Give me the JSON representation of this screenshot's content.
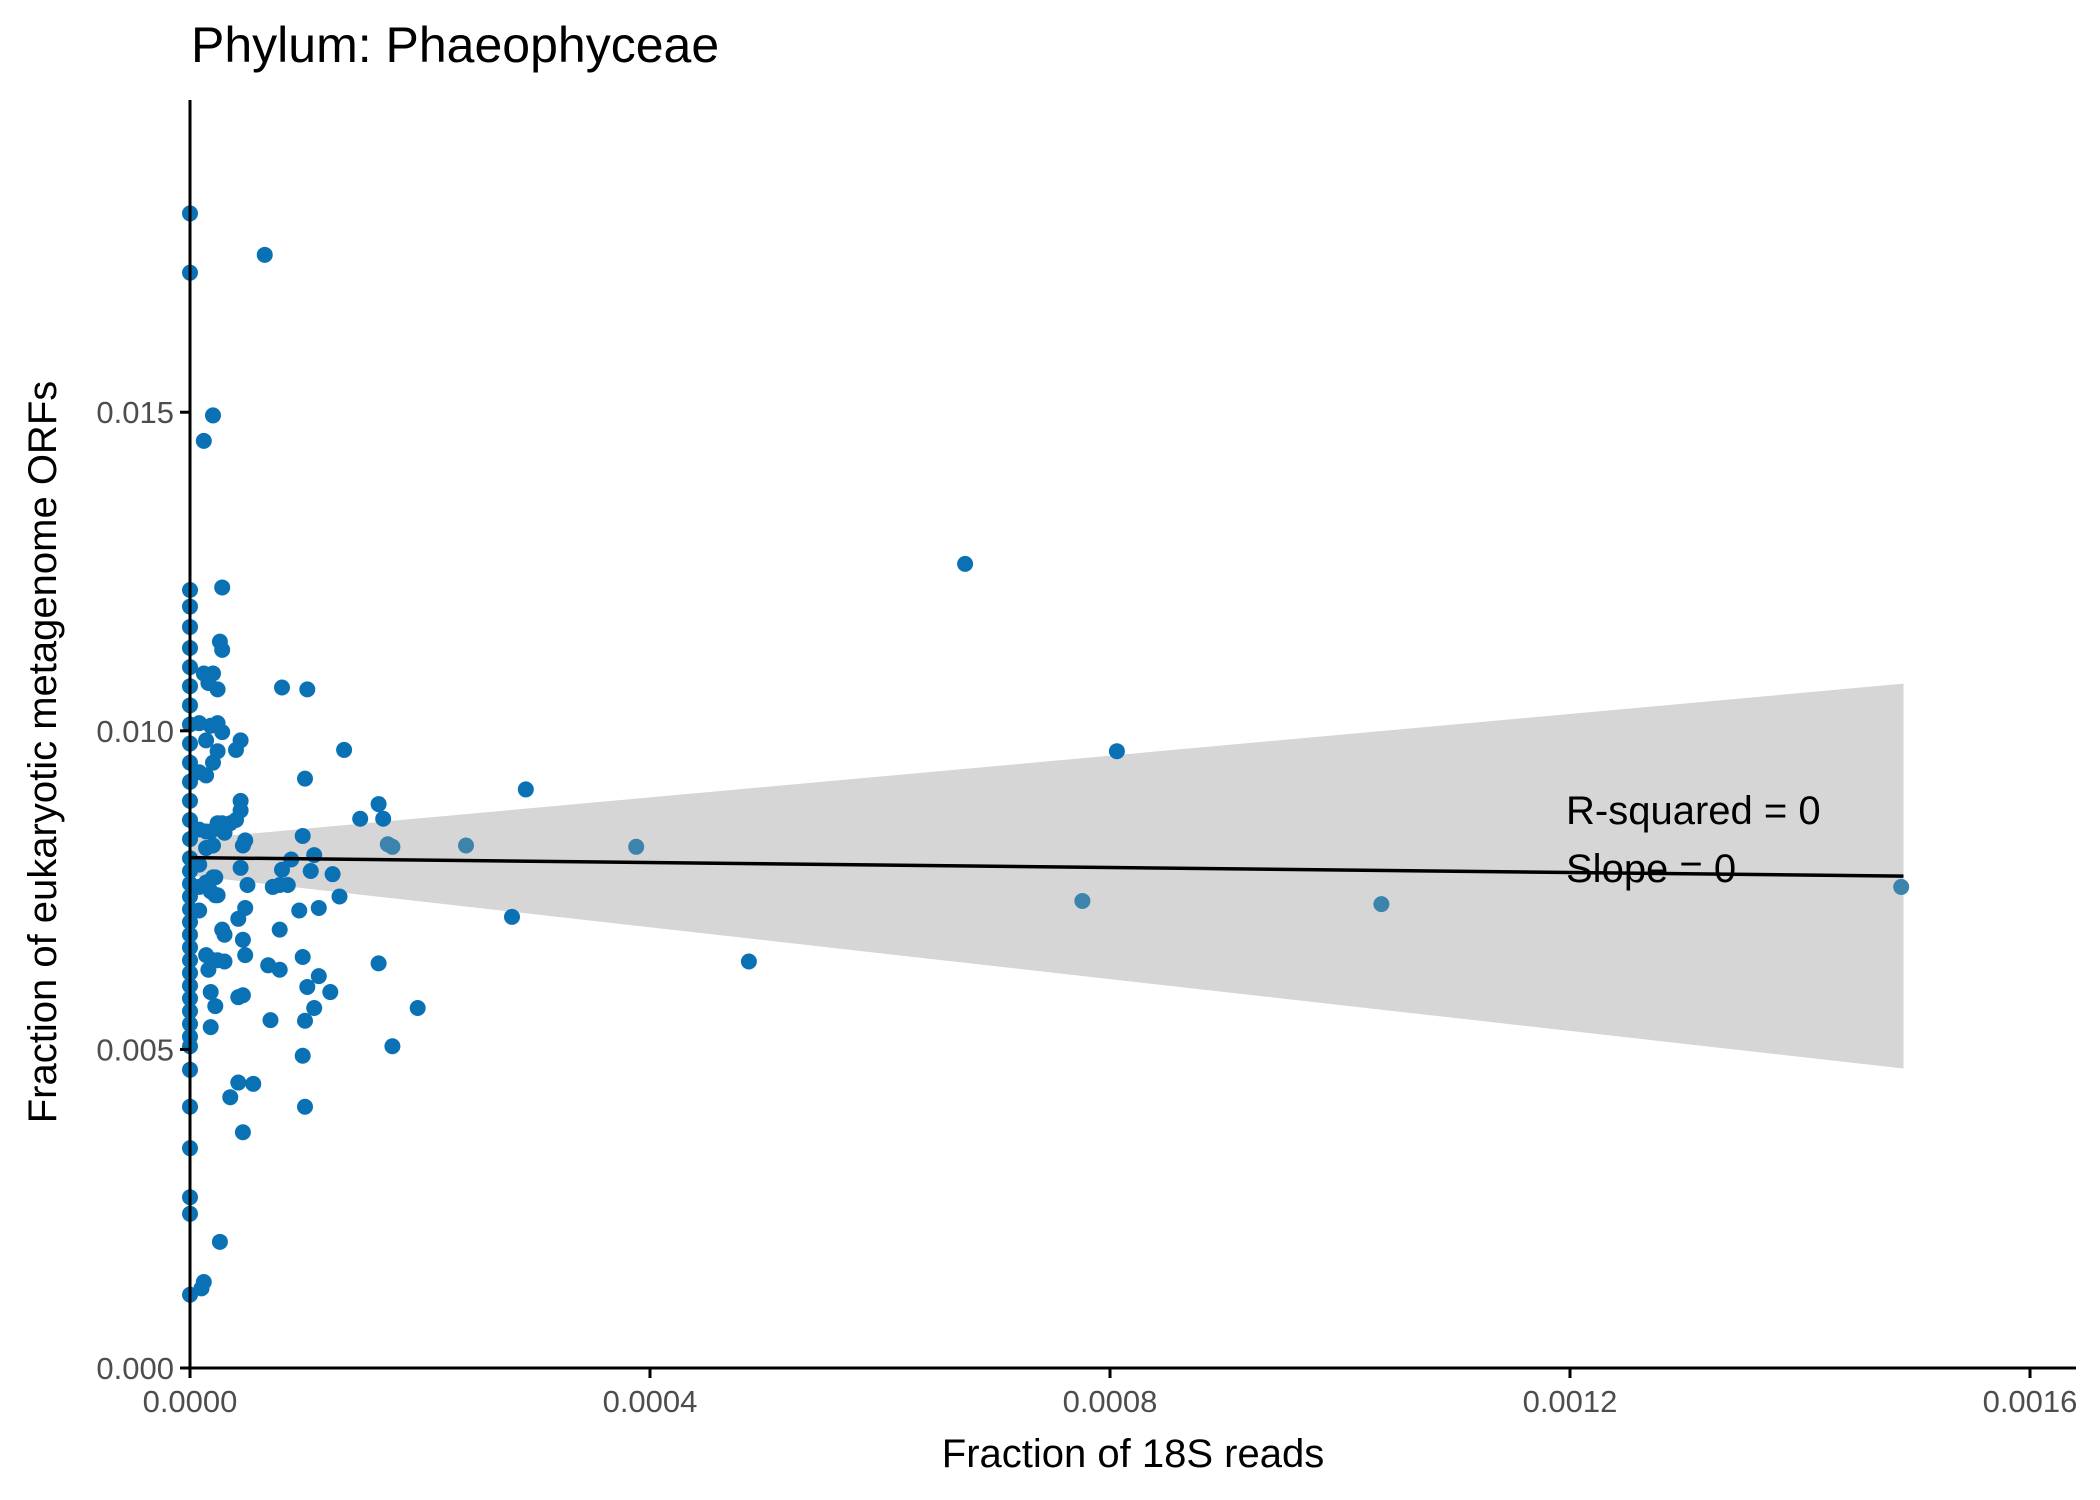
{
  "chart_data": {
    "type": "scatter",
    "title": "Phylum:  Phaeophyceae",
    "xlabel": "Fraction of 18S reads",
    "ylabel": "Fraction of eukaryotic metagenome ORFs",
    "xlim": [
      0,
      0.00164
    ],
    "ylim": [
      0,
      0.0199
    ],
    "x_ticks": [
      0,
      0.0004,
      0.0008,
      0.0012,
      0.0016
    ],
    "x_tick_labels": [
      "0.0000",
      "0.0004",
      "0.0008",
      "0.0012",
      "0.0016"
    ],
    "y_ticks": [
      0,
      0.005,
      0.01,
      0.015
    ],
    "y_tick_labels": [
      "0.000",
      "0.005",
      "0.010",
      "0.015"
    ],
    "grid": false,
    "colors": {
      "point": "#0a72b4",
      "point_overlap": "#3d84ad",
      "line": "#000000",
      "ribbon": "#d6d6d6",
      "axis": "#000000"
    },
    "annotations": [
      "R-squared =  0",
      "Slope =  0"
    ],
    "fit": {
      "x": [
        0,
        0.00149
      ],
      "y": [
        0.00801,
        0.00772
      ],
      "ci_lower": [
        0.00773,
        0.0047
      ],
      "ci_upper": [
        0.0083,
        0.01074
      ]
    },
    "points": [
      [
        0,
        0.01812
      ],
      [
        0,
        0.01719
      ],
      [
        0,
        0.01221
      ],
      [
        0,
        0.01195
      ],
      [
        0,
        0.01163
      ],
      [
        0,
        0.0113
      ],
      [
        0,
        0.011
      ],
      [
        0,
        0.0107
      ],
      [
        0,
        0.0104
      ],
      [
        0,
        0.0101
      ],
      [
        0,
        0.0098
      ],
      [
        0,
        0.0095
      ],
      [
        0,
        0.0092
      ],
      [
        0,
        0.0089
      ],
      [
        0,
        0.0086
      ],
      [
        0,
        0.0083
      ],
      [
        0,
        0.008
      ],
      [
        0,
        0.0078
      ],
      [
        0,
        0.0076
      ],
      [
        0,
        0.0074
      ],
      [
        0,
        0.0072
      ],
      [
        0,
        0.007
      ],
      [
        0,
        0.0068
      ],
      [
        0,
        0.0066
      ],
      [
        0,
        0.0064
      ],
      [
        0,
        0.0062
      ],
      [
        0,
        0.006
      ],
      [
        0,
        0.0058
      ],
      [
        0,
        0.0056
      ],
      [
        0,
        0.0054
      ],
      [
        0,
        0.0052
      ],
      [
        0,
        0.00505
      ],
      [
        0,
        0.00468
      ],
      [
        0,
        0.0041
      ],
      [
        0,
        0.00345
      ],
      [
        0,
        0.00268
      ],
      [
        0,
        0.00242
      ],
      [
        0,
        0.00115
      ],
      [
        8e-06,
        0.01012
      ],
      [
        8e-06,
        0.00935
      ],
      [
        8e-06,
        0.00845
      ],
      [
        8e-06,
        0.0079
      ],
      [
        8e-06,
        0.00755
      ],
      [
        8e-06,
        0.00718
      ],
      [
        1e-05,
        0.00125
      ],
      [
        1.2e-05,
        0.00135
      ],
      [
        1.2e-05,
        0.01455
      ],
      [
        1.2e-05,
        0.0109
      ],
      [
        1.4e-05,
        0.00985
      ],
      [
        1.4e-05,
        0.0093
      ],
      [
        1.4e-05,
        0.00842
      ],
      [
        1.4e-05,
        0.00816
      ],
      [
        1.4e-05,
        0.00762
      ],
      [
        1.4e-05,
        0.00648
      ],
      [
        1.6e-05,
        0.01075
      ],
      [
        1.6e-05,
        0.00625
      ],
      [
        1.8e-05,
        0.01008
      ],
      [
        1.8e-05,
        0.00842
      ],
      [
        1.8e-05,
        0.00748
      ],
      [
        1.8e-05,
        0.0059
      ],
      [
        1.8e-05,
        0.00535
      ],
      [
        2e-05,
        0.01495
      ],
      [
        2e-05,
        0.0109
      ],
      [
        2e-05,
        0.0095
      ],
      [
        2e-05,
        0.0082
      ],
      [
        2e-05,
        0.0077
      ],
      [
        2e-05,
        0.0064
      ],
      [
        2.2e-05,
        0.0077
      ],
      [
        2.2e-05,
        0.00742
      ],
      [
        2.2e-05,
        0.00568
      ],
      [
        2.4e-05,
        0.01065
      ],
      [
        2.4e-05,
        0.01012
      ],
      [
        2.4e-05,
        0.00968
      ],
      [
        2.4e-05,
        0.00855
      ],
      [
        2.4e-05,
        0.00742
      ],
      [
        2.4e-05,
        0.0064
      ],
      [
        2.6e-05,
        0.0114
      ],
      [
        2.6e-05,
        0.00198
      ],
      [
        2.8e-05,
        0.01225
      ],
      [
        2.8e-05,
        0.01127
      ],
      [
        2.8e-05,
        0.00998
      ],
      [
        2.8e-05,
        0.00855
      ],
      [
        2.8e-05,
        0.00688
      ],
      [
        3e-05,
        0.0084
      ],
      [
        3e-05,
        0.0068
      ],
      [
        3e-05,
        0.00638
      ],
      [
        3.5e-05,
        0.00855
      ],
      [
        3.5e-05,
        0.00425
      ],
      [
        4e-05,
        0.0097
      ],
      [
        4e-05,
        0.0086
      ],
      [
        4.2e-05,
        0.00705
      ],
      [
        4.2e-05,
        0.00582
      ],
      [
        4.2e-05,
        0.00448
      ],
      [
        4.4e-05,
        0.00985
      ],
      [
        4.4e-05,
        0.0089
      ],
      [
        4.4e-05,
        0.00875
      ],
      [
        4.4e-05,
        0.00785
      ],
      [
        4.6e-05,
        0.0082
      ],
      [
        4.6e-05,
        0.00672
      ],
      [
        4.6e-05,
        0.00585
      ],
      [
        4.6e-05,
        0.0037
      ],
      [
        4.8e-05,
        0.00828
      ],
      [
        4.8e-05,
        0.00722
      ],
      [
        4.8e-05,
        0.00648
      ],
      [
        5e-05,
        0.00758
      ],
      [
        5.5e-05,
        0.00446
      ],
      [
        6.5e-05,
        0.01747
      ],
      [
        6.8e-05,
        0.00632
      ],
      [
        7e-05,
        0.00546
      ],
      [
        7.2e-05,
        0.00755
      ],
      [
        7.8e-05,
        0.00625
      ],
      [
        7.8e-05,
        0.00688
      ],
      [
        7.8e-05,
        0.00758
      ],
      [
        8e-05,
        0.01068
      ],
      [
        8e-05,
        0.00782
      ],
      [
        8.5e-05,
        0.00758
      ],
      [
        8.8e-05,
        0.00798
      ],
      [
        9.5e-05,
        0.00718
      ],
      [
        9.8e-05,
        0.00835
      ],
      [
        9.8e-05,
        0.00645
      ],
      [
        9.8e-05,
        0.0049
      ],
      [
        0.0001,
        0.00925
      ],
      [
        0.0001,
        0.00545
      ],
      [
        0.0001,
        0.0041
      ],
      [
        0.000102,
        0.01065
      ],
      [
        0.000102,
        0.00598
      ],
      [
        0.000105,
        0.0078
      ],
      [
        0.000108,
        0.00805
      ],
      [
        0.000108,
        0.00565
      ],
      [
        0.000112,
        0.00722
      ],
      [
        0.000112,
        0.00615
      ],
      [
        0.000122,
        0.0059
      ],
      [
        0.000124,
        0.00775
      ],
      [
        0.00013,
        0.0074
      ],
      [
        0.000134,
        0.0097
      ],
      [
        0.000148,
        0.00862
      ],
      [
        0.000164,
        0.00885
      ],
      [
        0.000164,
        0.00635
      ],
      [
        0.000168,
        0.00862
      ],
      [
        0.000172,
        0.00822
      ],
      [
        0.000176,
        0.00818
      ],
      [
        0.000176,
        0.00505
      ],
      [
        0.000198,
        0.00565
      ],
      [
        0.00024,
        0.0082
      ],
      [
        0.00028,
        0.00708
      ],
      [
        0.000292,
        0.00908
      ],
      [
        0.000388,
        0.00818
      ],
      [
        0.000486,
        0.00638
      ],
      [
        0.000674,
        0.01262
      ],
      [
        0.000776,
        0.00733
      ],
      [
        0.000806,
        0.00968
      ],
      [
        0.001036,
        0.00728
      ],
      [
        0.001488,
        0.00755
      ]
    ]
  }
}
